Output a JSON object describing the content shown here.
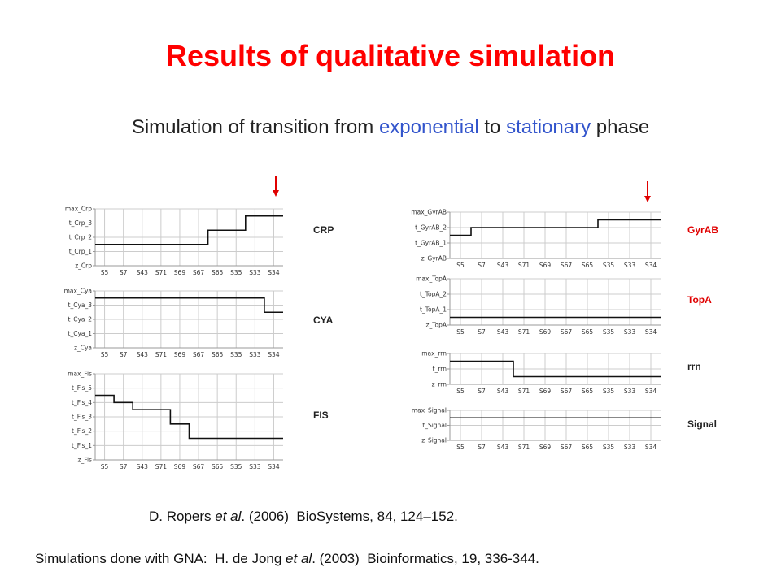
{
  "slide": {
    "title": "Results of qualitative simulation",
    "subtitle_parts": [
      "Simulation of transition from ",
      "exponential",
      " to ",
      "stationary",
      " phase"
    ],
    "citation1_parts": [
      "D. Ropers ",
      "et al",
      ". (2006)  BioSystems, 84, 124–152."
    ],
    "citation2_parts": [
      "Simulations done with GNA:  H. de Jong ",
      "et al",
      ". (2003)  Bioinformatics, 19, 336-344."
    ]
  },
  "colors": {
    "title": "#ff0000",
    "highlight": "#3355cc",
    "arrow": "#e00000",
    "gene_label_left": "#222222",
    "gene_label_right": "#e00000"
  },
  "chart_data": {
    "type": "line",
    "step": true,
    "states": [
      "S5",
      "S7",
      "S43",
      "S71",
      "S69",
      "S67",
      "S65",
      "S35",
      "S33",
      "S34"
    ],
    "grid": true,
    "series": [
      {
        "name": "CRP",
        "levels": [
          "z_Crp",
          "t_Crp_1",
          "t_Crp_2",
          "t_Crp_3",
          "max_Crp"
        ],
        "values": [
          1.5,
          1.5,
          1.5,
          1.5,
          1.5,
          1.5,
          2.5,
          2.5,
          3.5,
          3.5
        ]
      },
      {
        "name": "CYA",
        "levels": [
          "z_Cya",
          "t_Cya_1",
          "t_Cya_2",
          "t_Cya_3",
          "max_Cya"
        ],
        "values": [
          3.5,
          3.5,
          3.5,
          3.5,
          3.5,
          3.5,
          3.5,
          3.5,
          3.5,
          2.5
        ]
      },
      {
        "name": "FIS",
        "levels": [
          "z_Fis",
          "t_Fis_1",
          "t_Fis_2",
          "t_Fis_3",
          "t_Fis_4",
          "t_Fis_5",
          "max_Fis"
        ],
        "values": [
          4.5,
          4,
          3.5,
          3.5,
          2.5,
          1.5,
          1.5,
          1.5,
          1.5,
          1.5
        ]
      },
      {
        "name": "GyrAB",
        "levels": [
          "z_GyrAB",
          "t_GyrAB_1",
          "t_GyrAB_2",
          "max_GyrAB"
        ],
        "values": [
          1.5,
          2,
          2,
          2,
          2,
          2,
          2,
          2.5,
          2.5,
          2.5
        ]
      },
      {
        "name": "TopA",
        "levels": [
          "z_TopA",
          "t_TopA_1",
          "t_TopA_2",
          "max_TopA"
        ],
        "values": [
          0.5,
          0.5,
          0.5,
          0.5,
          0.5,
          0.5,
          0.5,
          0.5,
          0.5,
          0.5
        ]
      },
      {
        "name": "rrn",
        "levels": [
          "z_rrn",
          "t_rrn",
          "max_rrn"
        ],
        "values": [
          1.5,
          1.5,
          1.5,
          0.5,
          0.5,
          0.5,
          0.5,
          0.5,
          0.5,
          0.5
        ]
      },
      {
        "name": "Signal",
        "levels": [
          "z_Signal",
          "t_Signal",
          "max_Signal"
        ],
        "values": [
          1.5,
          1.5,
          1.5,
          1.5,
          1.5,
          1.5,
          1.5,
          1.5,
          1.5,
          1.5
        ]
      }
    ]
  }
}
